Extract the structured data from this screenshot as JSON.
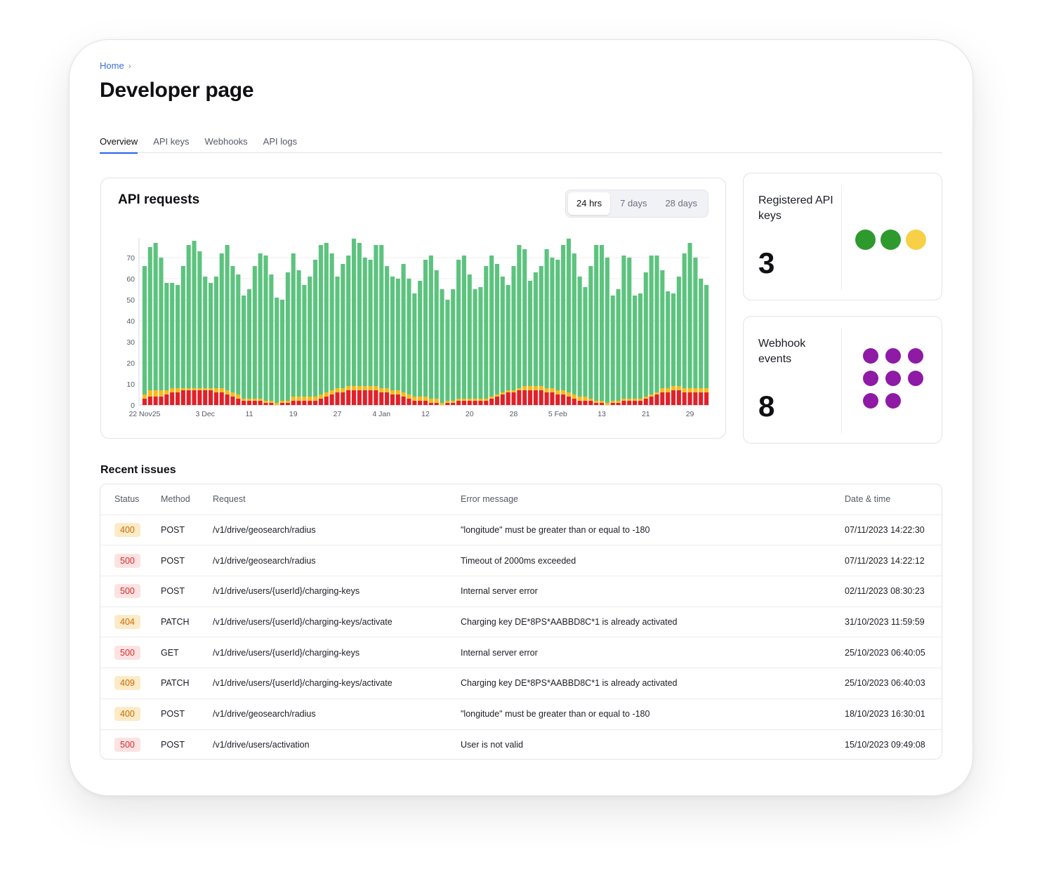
{
  "breadcrumb": {
    "home": "Home",
    "separator": "›"
  },
  "page": {
    "title": "Developer page"
  },
  "tabs": [
    {
      "label": "Overview",
      "active": true
    },
    {
      "label": "API keys",
      "active": false
    },
    {
      "label": "Webhooks",
      "active": false
    },
    {
      "label": "API logs",
      "active": false
    }
  ],
  "api_requests": {
    "title": "API requests",
    "ranges": [
      {
        "label": "24 hrs",
        "active": true
      },
      {
        "label": "7 days",
        "active": false
      },
      {
        "label": "28 days",
        "active": false
      }
    ]
  },
  "chart_data": {
    "type": "bar",
    "stacked": true,
    "title": "API requests",
    "xlabel": "",
    "ylabel": "",
    "ylim": [
      0,
      78
    ],
    "yticks": [
      0,
      10,
      20,
      30,
      40,
      50,
      60,
      70
    ],
    "grid": true,
    "colors": {
      "success": "#5cc37e",
      "client_error": "#fbb81c",
      "server_error": "#e0212a"
    },
    "x_tick_labels": [
      {
        "index": 0,
        "label": "22 Nov25"
      },
      {
        "index": 11,
        "label": "3 Dec"
      },
      {
        "index": 19,
        "label": "11"
      },
      {
        "index": 27,
        "label": "19"
      },
      {
        "index": 35,
        "label": "27"
      },
      {
        "index": 43,
        "label": "4 Jan"
      },
      {
        "index": 51,
        "label": "12"
      },
      {
        "index": 59,
        "label": "20"
      },
      {
        "index": 67,
        "label": "28"
      },
      {
        "index": 75,
        "label": "5 Feb"
      },
      {
        "index": 83,
        "label": "13"
      },
      {
        "index": 91,
        "label": "21"
      },
      {
        "index": 99,
        "label": "29"
      }
    ],
    "totals": [
      66,
      75,
      77,
      70,
      58,
      58,
      57,
      66,
      76,
      78,
      73,
      61,
      58,
      61,
      72,
      76,
      66,
      62,
      52,
      55,
      66,
      72,
      71,
      62,
      51,
      50,
      63,
      72,
      64,
      57,
      61,
      69,
      76,
      77,
      72,
      61,
      67,
      71,
      79,
      77,
      70,
      69,
      76,
      76,
      66,
      61,
      60,
      67,
      60,
      53,
      59,
      69,
      71,
      64,
      55,
      50,
      55,
      69,
      71,
      62,
      55,
      56,
      66,
      71,
      67,
      61,
      57,
      66,
      76,
      74,
      59,
      63,
      66,
      74,
      70,
      69,
      76,
      79,
      72,
      61,
      56,
      66,
      76,
      76,
      70,
      52,
      55,
      71,
      70,
      52,
      53,
      63,
      71,
      71,
      64,
      54,
      53,
      61,
      72,
      77,
      70,
      60,
      57
    ],
    "series": [
      {
        "name": "success"
      },
      {
        "name": "client_error"
      },
      {
        "name": "server_error"
      }
    ],
    "server_errors": [
      3,
      4,
      4,
      4,
      5,
      6,
      6,
      7,
      7,
      7,
      7,
      7,
      7,
      6,
      6,
      5,
      4,
      3,
      2,
      2,
      2,
      2,
      1,
      1,
      0,
      1,
      1,
      2,
      2,
      2,
      2,
      2,
      3,
      4,
      5,
      6,
      6,
      7,
      7,
      7,
      7,
      7,
      7,
      6,
      6,
      5,
      5,
      4,
      3,
      2,
      2,
      2,
      1,
      1,
      0,
      1,
      1,
      2,
      2,
      2,
      2,
      2,
      2,
      3,
      4,
      5,
      6,
      6,
      7,
      7,
      7,
      7,
      7,
      6,
      6,
      5,
      5,
      4,
      3,
      2,
      2,
      2,
      1,
      1,
      0,
      1,
      1,
      2,
      2,
      2,
      2,
      3,
      4,
      5,
      6,
      6,
      7,
      7,
      6,
      6,
      6,
      6,
      6
    ],
    "client_errors": [
      2,
      3,
      3,
      3,
      2,
      2,
      2,
      1,
      1,
      1,
      1,
      1,
      1,
      2,
      2,
      2,
      2,
      2,
      1,
      1,
      1,
      1,
      1,
      1,
      1,
      1,
      1,
      2,
      2,
      2,
      2,
      2,
      2,
      2,
      2,
      2,
      2,
      2,
      2,
      2,
      2,
      2,
      2,
      2,
      2,
      2,
      2,
      2,
      2,
      2,
      2,
      2,
      2,
      2,
      1,
      1,
      1,
      1,
      1,
      1,
      1,
      1,
      1,
      1,
      1,
      1,
      1,
      1,
      1,
      2,
      2,
      2,
      2,
      2,
      2,
      2,
      2,
      2,
      2,
      2,
      2,
      1,
      1,
      1,
      1,
      1,
      1,
      1,
      1,
      1,
      1,
      1,
      1,
      1,
      2,
      2,
      2,
      2,
      2,
      2,
      2,
      2,
      2
    ]
  },
  "registered_keys": {
    "label": "Registered API keys",
    "value": "3",
    "dots": [
      "#2e9a2e",
      "#2e9a2e",
      "#f7d047"
    ]
  },
  "webhook_events": {
    "label": "Webhook events",
    "value": "8",
    "dot_color": "#8e1aa5",
    "count": 8
  },
  "recent_issues": {
    "title": "Recent issues",
    "columns": [
      "Status",
      "Method",
      "Request",
      "Error message",
      "Date & time"
    ],
    "rows": [
      {
        "status": "400",
        "kind": "warn",
        "method": "POST",
        "request": "/v1/drive/geosearch/radius",
        "error": "\"longitude\" must be greater than or equal to -180",
        "date": "07/11/2023  14:22:30"
      },
      {
        "status": "500",
        "kind": "err",
        "method": "POST",
        "request": "/v1/drive/geosearch/radius",
        "error": "Timeout of 2000ms exceeded",
        "date": "07/11/2023  14:22:12"
      },
      {
        "status": "500",
        "kind": "err",
        "method": "POST",
        "request": "/v1/drive/users/{userId}/charging-keys",
        "error": "Internal server error",
        "date": "02/11/2023  08:30:23"
      },
      {
        "status": "404",
        "kind": "warn",
        "method": "PATCH",
        "request": "/v1/drive/users/{userId}/charging-keys/activate",
        "error": "Charging key DE*8PS*AABBD8C*1 is already activated",
        "date": "31/10/2023  11:59:59"
      },
      {
        "status": "500",
        "kind": "err",
        "method": "GET",
        "request": "/v1/drive/users/{userId}/charging-keys",
        "error": "Internal server error",
        "date": "25/10/2023  06:40:05"
      },
      {
        "status": "409",
        "kind": "warn",
        "method": "PATCH",
        "request": "/v1/drive/users/{userId}/charging-keys/activate",
        "error": "Charging key DE*8PS*AABBD8C*1 is already activated",
        "date": "25/10/2023  06:40:03"
      },
      {
        "status": "400",
        "kind": "warn",
        "method": "POST",
        "request": "/v1/drive/geosearch/radius",
        "error": "\"longitude\" must be greater than or equal to -180",
        "date": "18/10/2023  16:30:01"
      },
      {
        "status": "500",
        "kind": "err",
        "method": "POST",
        "request": "/v1/drive/users/activation",
        "error": "User is not valid",
        "date": "15/10/2023  09:49:08"
      }
    ]
  }
}
